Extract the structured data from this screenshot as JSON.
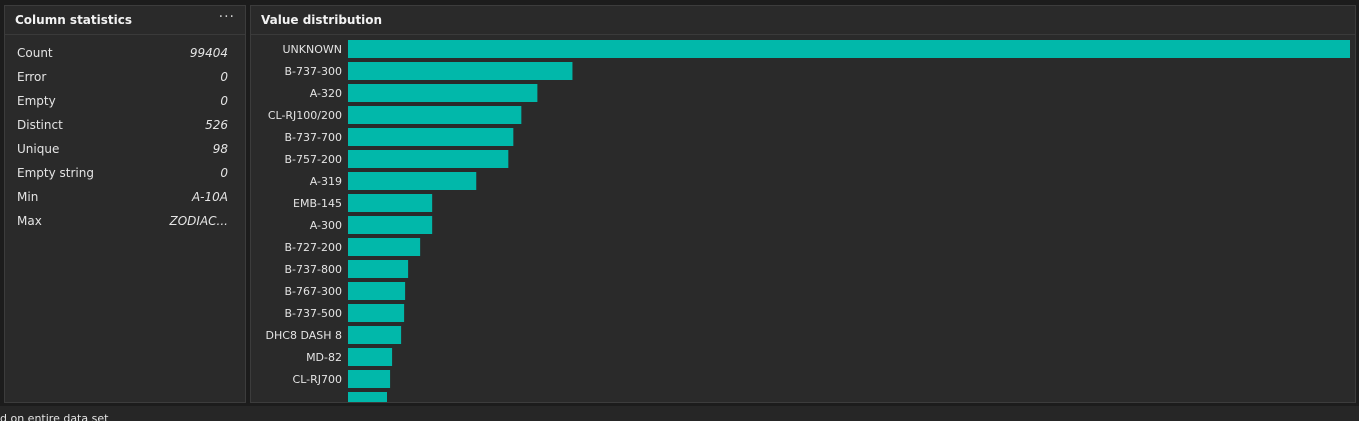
{
  "stats_panel": {
    "title": "Column statistics",
    "menu_icon": "more-horizontal-icon",
    "rows": [
      {
        "label": "Count",
        "value": "99404"
      },
      {
        "label": "Error",
        "value": "0"
      },
      {
        "label": "Empty",
        "value": "0"
      },
      {
        "label": "Distinct",
        "value": "526"
      },
      {
        "label": "Unique",
        "value": "98"
      },
      {
        "label": "Empty string",
        "value": "0"
      },
      {
        "label": "Min",
        "value": "A-10A"
      },
      {
        "label": "Max",
        "value": "ZODIAC..."
      }
    ]
  },
  "dist_panel": {
    "title": "Value distribution"
  },
  "chart_data": {
    "type": "bar",
    "orientation": "horizontal",
    "categories": [
      "UNKNOWN",
      "B-737-300",
      "A-320",
      "CL-RJ100/200",
      "B-737-700",
      "B-757-200",
      "A-319",
      "EMB-145",
      "A-300",
      "B-727-200",
      "B-737-800",
      "B-767-300",
      "B-737-500",
      "DHC8 DASH 8",
      "MD-82",
      "CL-RJ700"
    ],
    "values": [
      100,
      22.4,
      18.9,
      17.3,
      16.5,
      16.0,
      12.8,
      8.4,
      8.4,
      7.2,
      6.0,
      5.7,
      5.6,
      5.3,
      4.4,
      4.2
    ],
    "color": "#01b8aa",
    "xlim": [
      0,
      100
    ],
    "grid": false
  },
  "footer": {
    "text": "d on entire data set"
  }
}
